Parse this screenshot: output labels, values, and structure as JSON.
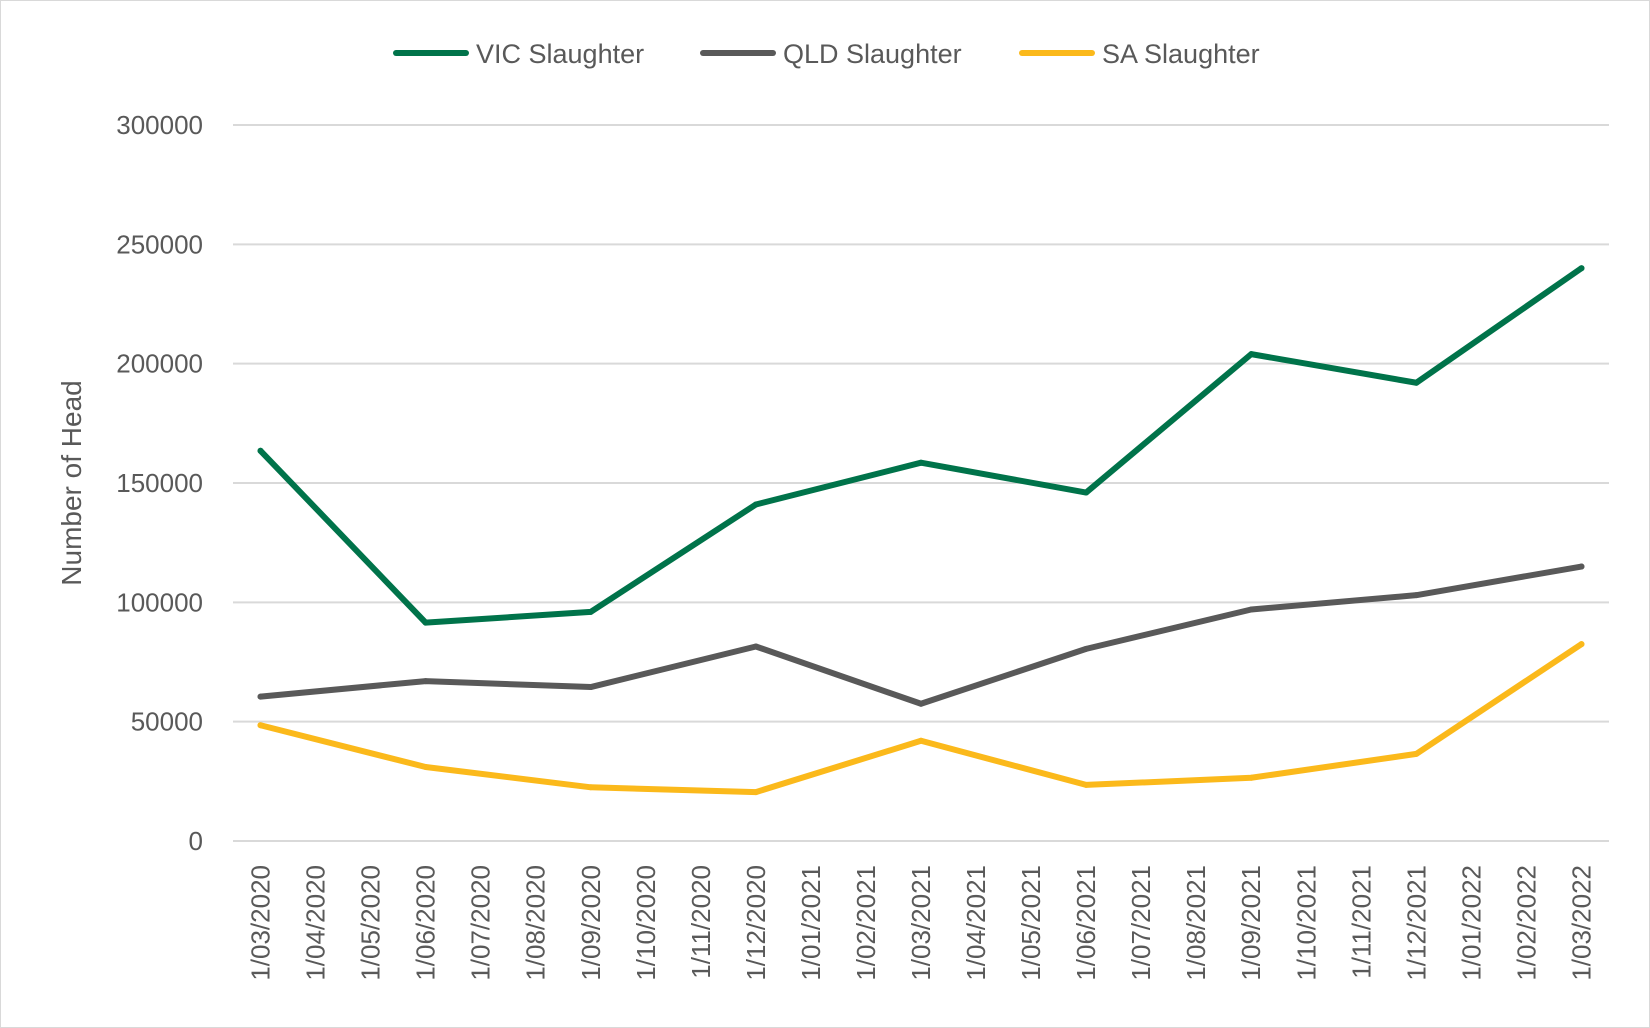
{
  "chart_data": {
    "type": "line",
    "title": "",
    "xlabel": "",
    "ylabel": "Number of Head",
    "ylim": [
      0,
      300000
    ],
    "yticks": [
      0,
      50000,
      100000,
      150000,
      200000,
      250000,
      300000
    ],
    "grid": true,
    "legend_position": "top",
    "categories": [
      "1/03/2020",
      "1/04/2020",
      "1/05/2020",
      "1/06/2020",
      "1/07/2020",
      "1/08/2020",
      "1/09/2020",
      "1/10/2020",
      "1/11/2020",
      "1/12/2020",
      "1/01/2021",
      "1/02/2021",
      "1/03/2021",
      "1/04/2021",
      "1/05/2021",
      "1/06/2021",
      "1/07/2021",
      "1/08/2021",
      "1/09/2021",
      "1/10/2021",
      "1/11/2021",
      "1/12/2021",
      "1/01/2022",
      "1/02/2022",
      "1/03/2022"
    ],
    "series": [
      {
        "name": "VIC Slaughter",
        "color": "#00734a",
        "points": [
          {
            "x": "1/03/2020",
            "y": 163500
          },
          {
            "x": "1/06/2020",
            "y": 91500
          },
          {
            "x": "1/09/2020",
            "y": 96000
          },
          {
            "x": "1/12/2020",
            "y": 141000
          },
          {
            "x": "1/03/2021",
            "y": 158500
          },
          {
            "x": "1/06/2021",
            "y": 146000
          },
          {
            "x": "1/09/2021",
            "y": 204000
          },
          {
            "x": "1/12/2021",
            "y": 192000
          },
          {
            "x": "1/03/2022",
            "y": 240000
          }
        ]
      },
      {
        "name": "QLD Slaughter",
        "color": "#595959",
        "points": [
          {
            "x": "1/03/2020",
            "y": 60500
          },
          {
            "x": "1/06/2020",
            "y": 67000
          },
          {
            "x": "1/09/2020",
            "y": 64500
          },
          {
            "x": "1/12/2020",
            "y": 81500
          },
          {
            "x": "1/03/2021",
            "y": 57500
          },
          {
            "x": "1/06/2021",
            "y": 80500
          },
          {
            "x": "1/09/2021",
            "y": 97000
          },
          {
            "x": "1/12/2021",
            "y": 103000
          },
          {
            "x": "1/03/2022",
            "y": 115000
          }
        ]
      },
      {
        "name": "SA Slaughter",
        "color": "#fbb91b",
        "points": [
          {
            "x": "1/03/2020",
            "y": 48500
          },
          {
            "x": "1/06/2020",
            "y": 31000
          },
          {
            "x": "1/09/2020",
            "y": 22500
          },
          {
            "x": "1/12/2020",
            "y": 20500
          },
          {
            "x": "1/03/2021",
            "y": 42000
          },
          {
            "x": "1/06/2021",
            "y": 23500
          },
          {
            "x": "1/09/2021",
            "y": 26500
          },
          {
            "x": "1/12/2021",
            "y": 36500
          },
          {
            "x": "1/03/2022",
            "y": 82500
          }
        ]
      }
    ]
  }
}
